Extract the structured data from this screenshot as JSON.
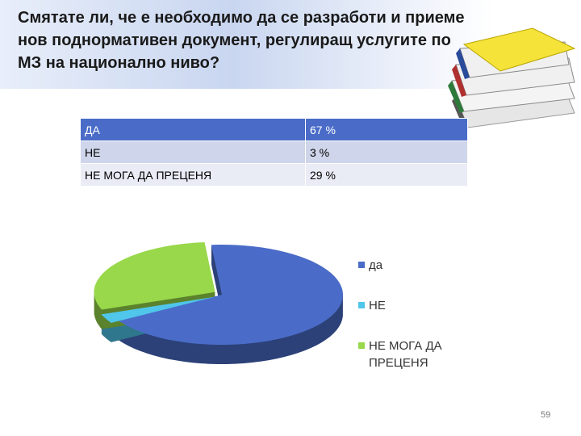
{
  "title": "Смятате ли, че е необходимо да се разработи и приеме нов поднормативен документ, регулиращ услугите по МЗ на национално ниво?",
  "table": {
    "rows": [
      [
        "ДА",
        "67 %"
      ],
      [
        "НЕ",
        "3 %"
      ],
      [
        "НЕ МОГА ДА ПРЕЦЕНЯ",
        "29 %"
      ]
    ]
  },
  "chart_data": {
    "type": "pie",
    "categories": [
      "да",
      "НЕ",
      "НЕ МОГА ДА ПРЕЦЕНЯ"
    ],
    "values": [
      67,
      3,
      29
    ],
    "colors": [
      "#4a6cc8",
      "#4fc6ea",
      "#98d84a"
    ],
    "legend": "right"
  },
  "page_number": "59"
}
